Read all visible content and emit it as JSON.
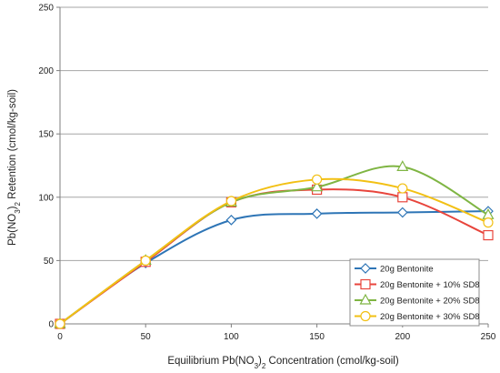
{
  "chart_data": {
    "type": "line",
    "xlabel": "Equilibrium  Pb(NO3)2  Concentration (cmol/kg-soil)",
    "ylabel": "Pb(NO3)2 Retention (cmol/kg-soil)",
    "xlim": [
      0,
      250
    ],
    "ylim": [
      0,
      250
    ],
    "x_ticks": [
      0,
      50,
      100,
      150,
      200,
      250
    ],
    "y_ticks": [
      0,
      50,
      100,
      150,
      200,
      250
    ],
    "grid": "horizontal",
    "smooth": true,
    "legend_position": "bottom-right",
    "series": [
      {
        "name": "20g Bentonite",
        "color": "#2E75B6",
        "marker": "diamond",
        "points": [
          [
            0,
            0
          ],
          [
            50,
            48
          ],
          [
            100,
            82
          ],
          [
            150,
            87
          ],
          [
            200,
            88
          ],
          [
            250,
            89
          ]
        ]
      },
      {
        "name": "20g Bentonite + 10% SD8",
        "color": "#E8453C",
        "marker": "square",
        "points": [
          [
            0,
            0
          ],
          [
            50,
            49
          ],
          [
            100,
            96
          ],
          [
            150,
            106
          ],
          [
            200,
            100
          ],
          [
            250,
            70
          ]
        ]
      },
      {
        "name": "20g Bentonite + 20% SD8",
        "color": "#7FB543",
        "marker": "triangle",
        "points": [
          [
            0,
            0
          ],
          [
            50,
            50
          ],
          [
            100,
            96
          ],
          [
            150,
            108
          ],
          [
            200,
            124
          ],
          [
            250,
            86
          ]
        ]
      },
      {
        "name": "20g Bentonite + 30% SD8",
        "color": "#F2C014",
        "marker": "circle",
        "points": [
          [
            0,
            0
          ],
          [
            50,
            50
          ],
          [
            100,
            97
          ],
          [
            150,
            114
          ],
          [
            200,
            107
          ],
          [
            250,
            80
          ]
        ]
      }
    ]
  }
}
